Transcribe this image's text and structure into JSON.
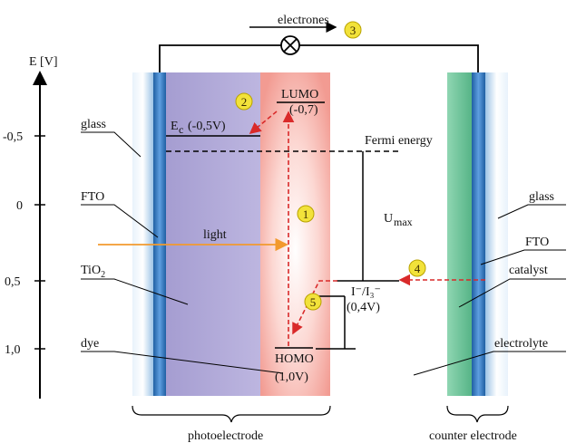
{
  "axis": {
    "label": "E [V]",
    "ticks": [
      "-0,5",
      "0",
      "0,5",
      "1,0"
    ]
  },
  "labels": {
    "electrons": "electrones",
    "glass_left": "glass",
    "fto_left": "FTO",
    "tio2": "TiO",
    "tio2_sub": "2",
    "dye": "dye",
    "light": "light",
    "ec": "E",
    "ec_sub": "c",
    "ec_value": "(-0,5V)",
    "lumo": "LUMO",
    "lumo_value": "(-0,7)",
    "homo": "HOMO",
    "homo_value": "(1,0V)",
    "fermi": "Fermi energy",
    "umax": "U",
    "umax_sub": "max",
    "redox": "I⁻/I₃⁻",
    "redox_value": "(0,4V)",
    "glass_right": "glass",
    "fto_right": "FTO",
    "catalyst": "catalyst",
    "electrolyte": "electrolyte",
    "photoelectrode": "photoelectrode",
    "counter_electrode": "counter electrode"
  },
  "steps": [
    "1",
    "2",
    "3",
    "4",
    "5"
  ],
  "colors": {
    "glass": "#bcd8ee",
    "fto": "#2a6fb5",
    "tio2": "#b0a8d8",
    "dye": "#f3a79f",
    "catalyst": "#6cc49a",
    "light_arrow": "#f29a2e",
    "electron_path": "#d92a2a",
    "marker": "#f2e23a"
  }
}
